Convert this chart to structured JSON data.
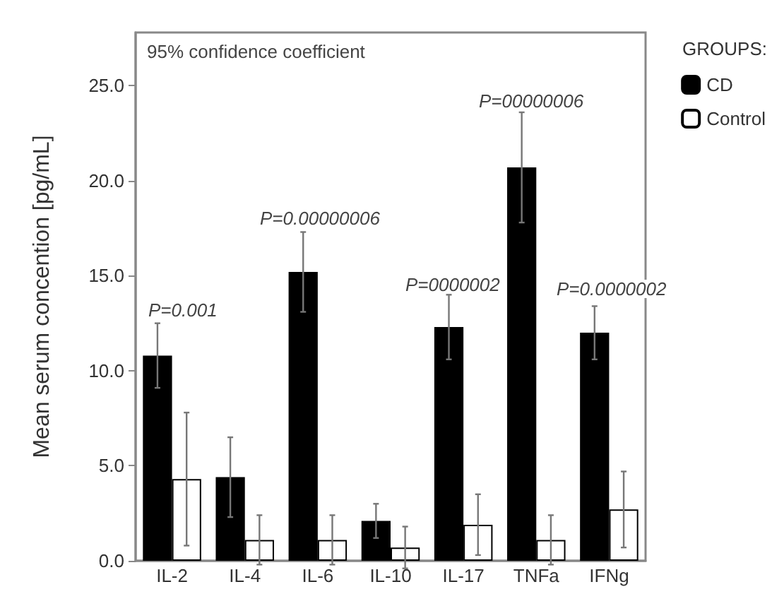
{
  "chart_data": {
    "type": "bar",
    "ylabel": "Mean serum concention [pg/mL]",
    "legend_title": "GROUPS:",
    "categories": [
      "IL-2",
      "IL-4",
      "IL-6",
      "IL-10",
      "IL-17",
      "TNFa",
      "IFNg"
    ],
    "series": [
      {
        "name": "CD",
        "color": "#000000",
        "values": [
          10.8,
          4.4,
          15.2,
          2.1,
          12.3,
          20.7,
          12.0
        ],
        "errors": [
          1.7,
          2.1,
          2.1,
          0.9,
          1.7,
          2.9,
          1.4
        ]
      },
      {
        "name": "Control",
        "color": "#ffffff",
        "values": [
          4.3,
          1.1,
          1.1,
          0.7,
          1.9,
          1.1,
          2.7
        ],
        "errors": [
          3.5,
          1.3,
          1.3,
          1.1,
          1.6,
          1.3,
          2.0
        ]
      }
    ],
    "ylim": [
      0,
      27.8
    ],
    "yticks": [
      {
        "value": 0,
        "label": "0.0"
      },
      {
        "value": 5,
        "label": "5.0"
      },
      {
        "value": 10,
        "label": "10.0"
      },
      {
        "value": 15,
        "label": "15.0"
      },
      {
        "value": 20,
        "label": "20.0"
      },
      {
        "value": 25,
        "label": "25.0"
      }
    ],
    "annotations": [
      "95% confidence coefficient",
      "P=0.001",
      "P=0.00000006",
      "P=0000002",
      "P=00000006",
      "P=0.0000002"
    ],
    "legend": "right",
    "grid": false
  }
}
